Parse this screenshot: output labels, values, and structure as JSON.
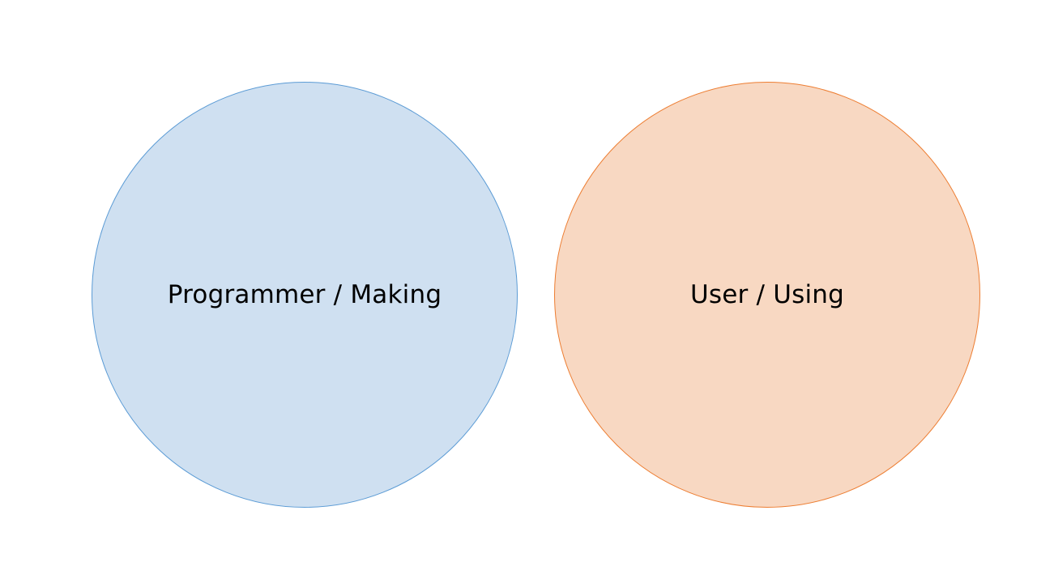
{
  "diagram": {
    "circles": [
      {
        "label": "Programmer / Making",
        "fill": "#cfe0f1",
        "stroke": "#5b9bd5"
      },
      {
        "label": "User / Using",
        "fill": "#f8d8c2",
        "stroke": "#ed7d31"
      }
    ]
  }
}
